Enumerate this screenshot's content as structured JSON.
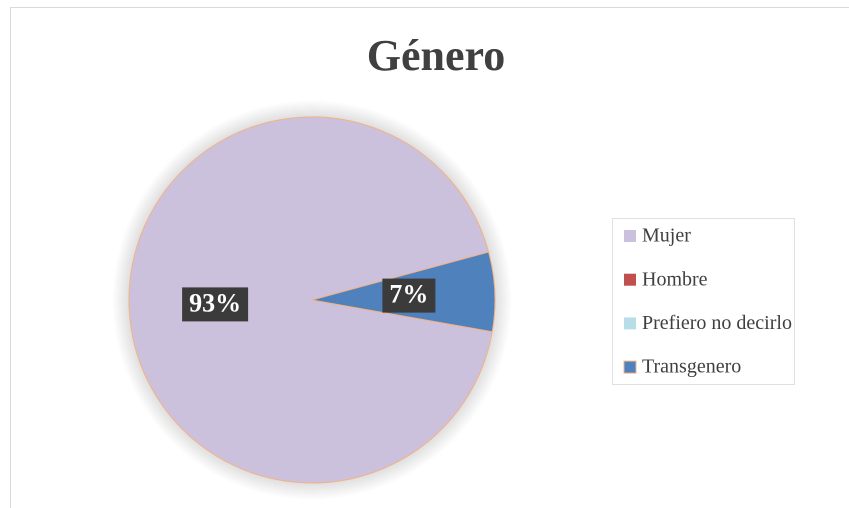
{
  "chart_data": {
    "type": "pie",
    "title": "Género",
    "categories": [
      "Mujer",
      "Hombre",
      "Prefiero no decirlo",
      "Transgenero"
    ],
    "values": [
      93,
      0,
      0,
      7
    ],
    "value_labels": [
      "93%",
      null,
      null,
      "7%"
    ],
    "colors": [
      "#ccc1dc",
      "#c0504d",
      "#b7dee8",
      "#4f81bd"
    ],
    "legend": "right"
  }
}
